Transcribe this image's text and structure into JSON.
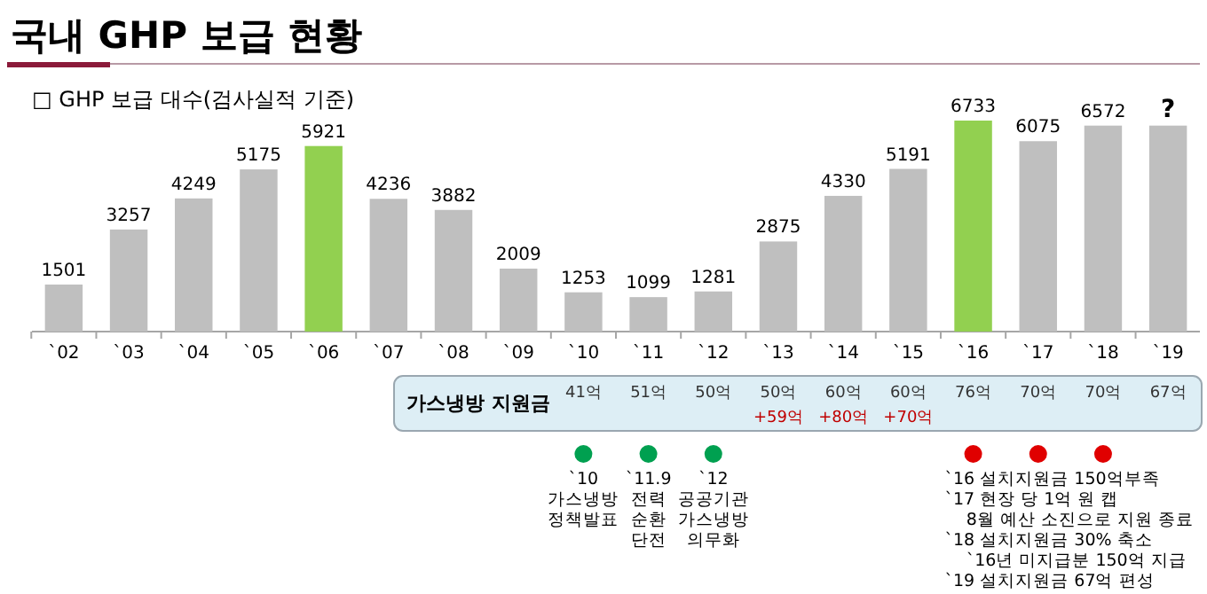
{
  "chart_data": {
    "type": "bar",
    "title": "국내 GHP 보급 현황",
    "subtitle": "□ GHP 보급 대수(검사실적 기준)",
    "categories": [
      "`02",
      "`03",
      "`04",
      "`05",
      "`06",
      "`07",
      "`08",
      "`09",
      "`10",
      "`11",
      "`12",
      "`13",
      "`14",
      "`15",
      "`16",
      "`17",
      "`18",
      "`19"
    ],
    "values": [
      1501,
      3257,
      4249,
      5175,
      5921,
      4236,
      3882,
      2009,
      1253,
      1099,
      1281,
      2875,
      4330,
      5191,
      6733,
      6075,
      6572,
      6572
    ],
    "value_labels": [
      "1501",
      "3257",
      "4249",
      "5175",
      "5921",
      "4236",
      "3882",
      "2009",
      "1253",
      "1099",
      "1281",
      "2875",
      "4330",
      "5191",
      "6733",
      "6075",
      "6572",
      "?"
    ],
    "colors": [
      "#bfbfbf",
      "#bfbfbf",
      "#bfbfbf",
      "#bfbfbf",
      "#92d050",
      "#bfbfbf",
      "#bfbfbf",
      "#bfbfbf",
      "#bfbfbf",
      "#bfbfbf",
      "#bfbfbf",
      "#bfbfbf",
      "#bfbfbf",
      "#bfbfbf",
      "#92d050",
      "#bfbfbf",
      "#bfbfbf",
      "#bfbfbf"
    ],
    "annotations": [
      "가스냉방 지원금",
      "41억",
      "51억",
      "50억",
      "50억\n+59억",
      "60억\n+80억",
      "60억\n+70억",
      "76억",
      "70억",
      "70억",
      "67억",
      "`10\n가스냉방\n정책발표",
      "`11.9\n전력\n순환\n단전",
      "`12\n공공기관\n가스냉방\n의무화",
      "`16 설치지원금 150억부족\n`17 현장 당 1억 원 캡\n    8월 예산 소진으로 지원 종료\n`18 설치지원금 30% 축소\n    `16년 미지급분 150억 지급\n`19 설치지원금 67억 편성"
    ]
  }
}
